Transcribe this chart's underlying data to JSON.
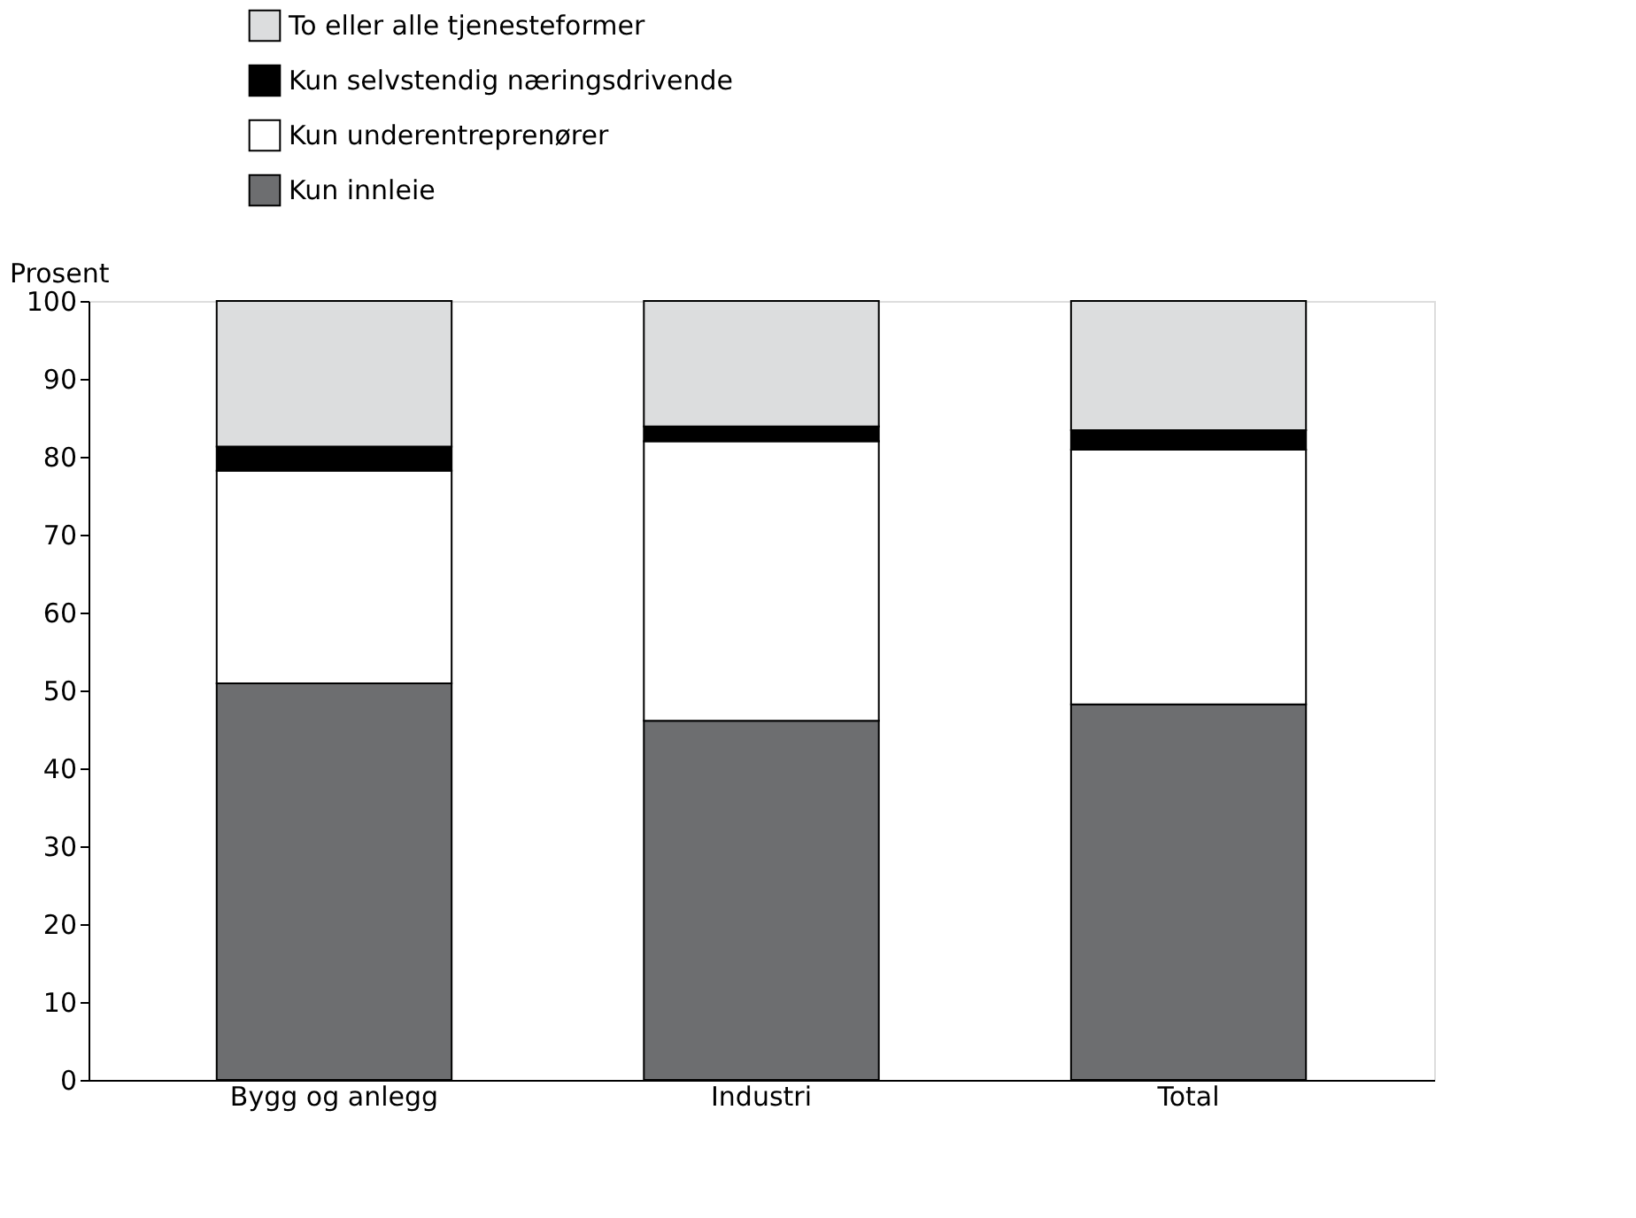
{
  "chart_data": {
    "type": "bar",
    "stacked": true,
    "ylabel": "Prosent",
    "categories": [
      "Bygg og anlegg",
      "Industri",
      "Total"
    ],
    "series": [
      {
        "name": "Kun innleie",
        "color": "#6d6e70",
        "values": [
          50.9,
          46.1,
          48.2
        ]
      },
      {
        "name": "Kun underentreprenører",
        "color": "#ffffff",
        "values": [
          27.3,
          35.9,
          32.7
        ]
      },
      {
        "name": "Kun selvstendig næringsdrivende",
        "color": "#000000",
        "values": [
          3.1,
          1.9,
          2.5
        ]
      },
      {
        "name": "To eller alle tjenesteformer",
        "color": "#dcddde",
        "values": [
          18.7,
          16.1,
          16.6
        ]
      }
    ],
    "ylim": [
      0,
      100
    ],
    "yticks": [
      0,
      10,
      20,
      30,
      40,
      50,
      60,
      70,
      80,
      90,
      100
    ],
    "grid": false,
    "legend": "top left"
  }
}
